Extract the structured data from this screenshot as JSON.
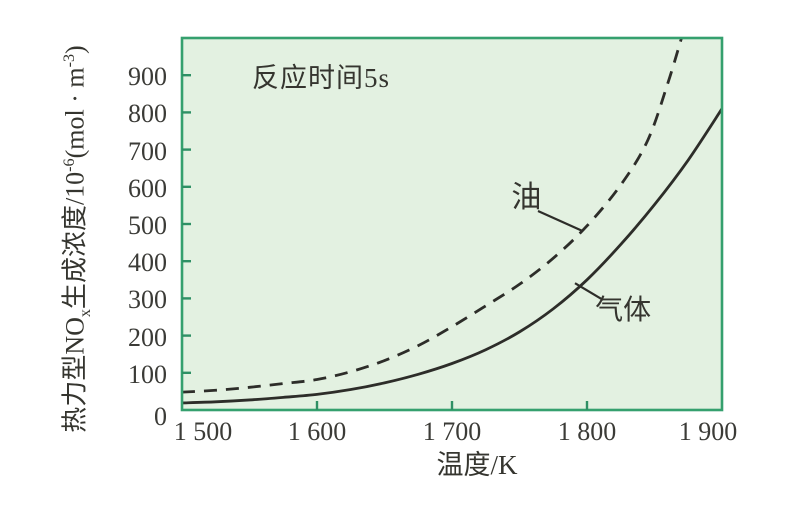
{
  "chart_data": {
    "type": "line",
    "annotation": "反应时间5s",
    "xlabel": "温度/K",
    "ylabel_text": "热力型NOx生成浓度/10-6(mol · m-3)",
    "ylabel_segments": [
      {
        "t": "热力型NO"
      },
      {
        "t": "x",
        "s": "sub"
      },
      {
        "t": "生成浓度/10"
      },
      {
        "t": "-6",
        "s": "sup"
      },
      {
        "t": "(mol · m"
      },
      {
        "t": "-3",
        "s": "sup"
      },
      {
        "t": ")"
      }
    ],
    "xlim": [
      1500,
      1900
    ],
    "ylim": [
      0,
      1000
    ],
    "grid": false,
    "xticks": [
      {
        "v": 1500,
        "label": "1 500"
      },
      {
        "v": 1600,
        "label": "1 600"
      },
      {
        "v": 1700,
        "label": "1 700"
      },
      {
        "v": 1800,
        "label": "1 800"
      },
      {
        "v": 1900,
        "label": "1 900"
      }
    ],
    "yticks": [
      {
        "v": 0,
        "label": "0"
      },
      {
        "v": 100,
        "label": "100"
      },
      {
        "v": 200,
        "label": "200"
      },
      {
        "v": 300,
        "label": "300"
      },
      {
        "v": 400,
        "label": "400"
      },
      {
        "v": 500,
        "label": "500"
      },
      {
        "v": 600,
        "label": "600"
      },
      {
        "v": 700,
        "label": "700"
      },
      {
        "v": 800,
        "label": "800"
      },
      {
        "v": 900,
        "label": "900"
      }
    ],
    "series": [
      {
        "name": "油",
        "id": "oil",
        "line": "dashed",
        "points": [
          [
            1500,
            48
          ],
          [
            1525,
            53
          ],
          [
            1550,
            61
          ],
          [
            1575,
            71
          ],
          [
            1600,
            82
          ],
          [
            1625,
            103
          ],
          [
            1650,
            133
          ],
          [
            1675,
            173
          ],
          [
            1700,
            224
          ],
          [
            1725,
            280
          ],
          [
            1750,
            338
          ],
          [
            1775,
            408
          ],
          [
            1800,
            495
          ],
          [
            1825,
            605
          ],
          [
            1845,
            725
          ],
          [
            1860,
            880
          ],
          [
            1870,
            1000
          ]
        ]
      },
      {
        "name": "气体",
        "id": "gas",
        "line": "solid",
        "points": [
          [
            1500,
            19
          ],
          [
            1525,
            22
          ],
          [
            1550,
            27
          ],
          [
            1575,
            34
          ],
          [
            1600,
            42
          ],
          [
            1625,
            55
          ],
          [
            1650,
            73
          ],
          [
            1675,
            96
          ],
          [
            1700,
            125
          ],
          [
            1725,
            162
          ],
          [
            1750,
            210
          ],
          [
            1775,
            272
          ],
          [
            1800,
            350
          ],
          [
            1825,
            445
          ],
          [
            1850,
            552
          ],
          [
            1875,
            672
          ],
          [
            1900,
            810
          ]
        ]
      }
    ],
    "series_labels": [
      {
        "id": "oil",
        "text": "油",
        "anchor": [
          1744,
          613
        ],
        "leader": [
          [
            1763.7,
            535
          ],
          [
            1796.3,
            482
          ]
        ],
        "font_px": 30
      },
      {
        "id": "gas",
        "text": "气体",
        "anchor": [
          1806,
          306
        ],
        "leader": [
          [
            1791.1,
            341
          ],
          [
            1811.9,
            296
          ]
        ],
        "font_px": 28
      }
    ],
    "colors": {
      "plot_background": "#e3f1e1",
      "frame": "#35a06e",
      "tick": "#2f9065",
      "curve": "#2d2d29",
      "text": "#35352f"
    }
  }
}
